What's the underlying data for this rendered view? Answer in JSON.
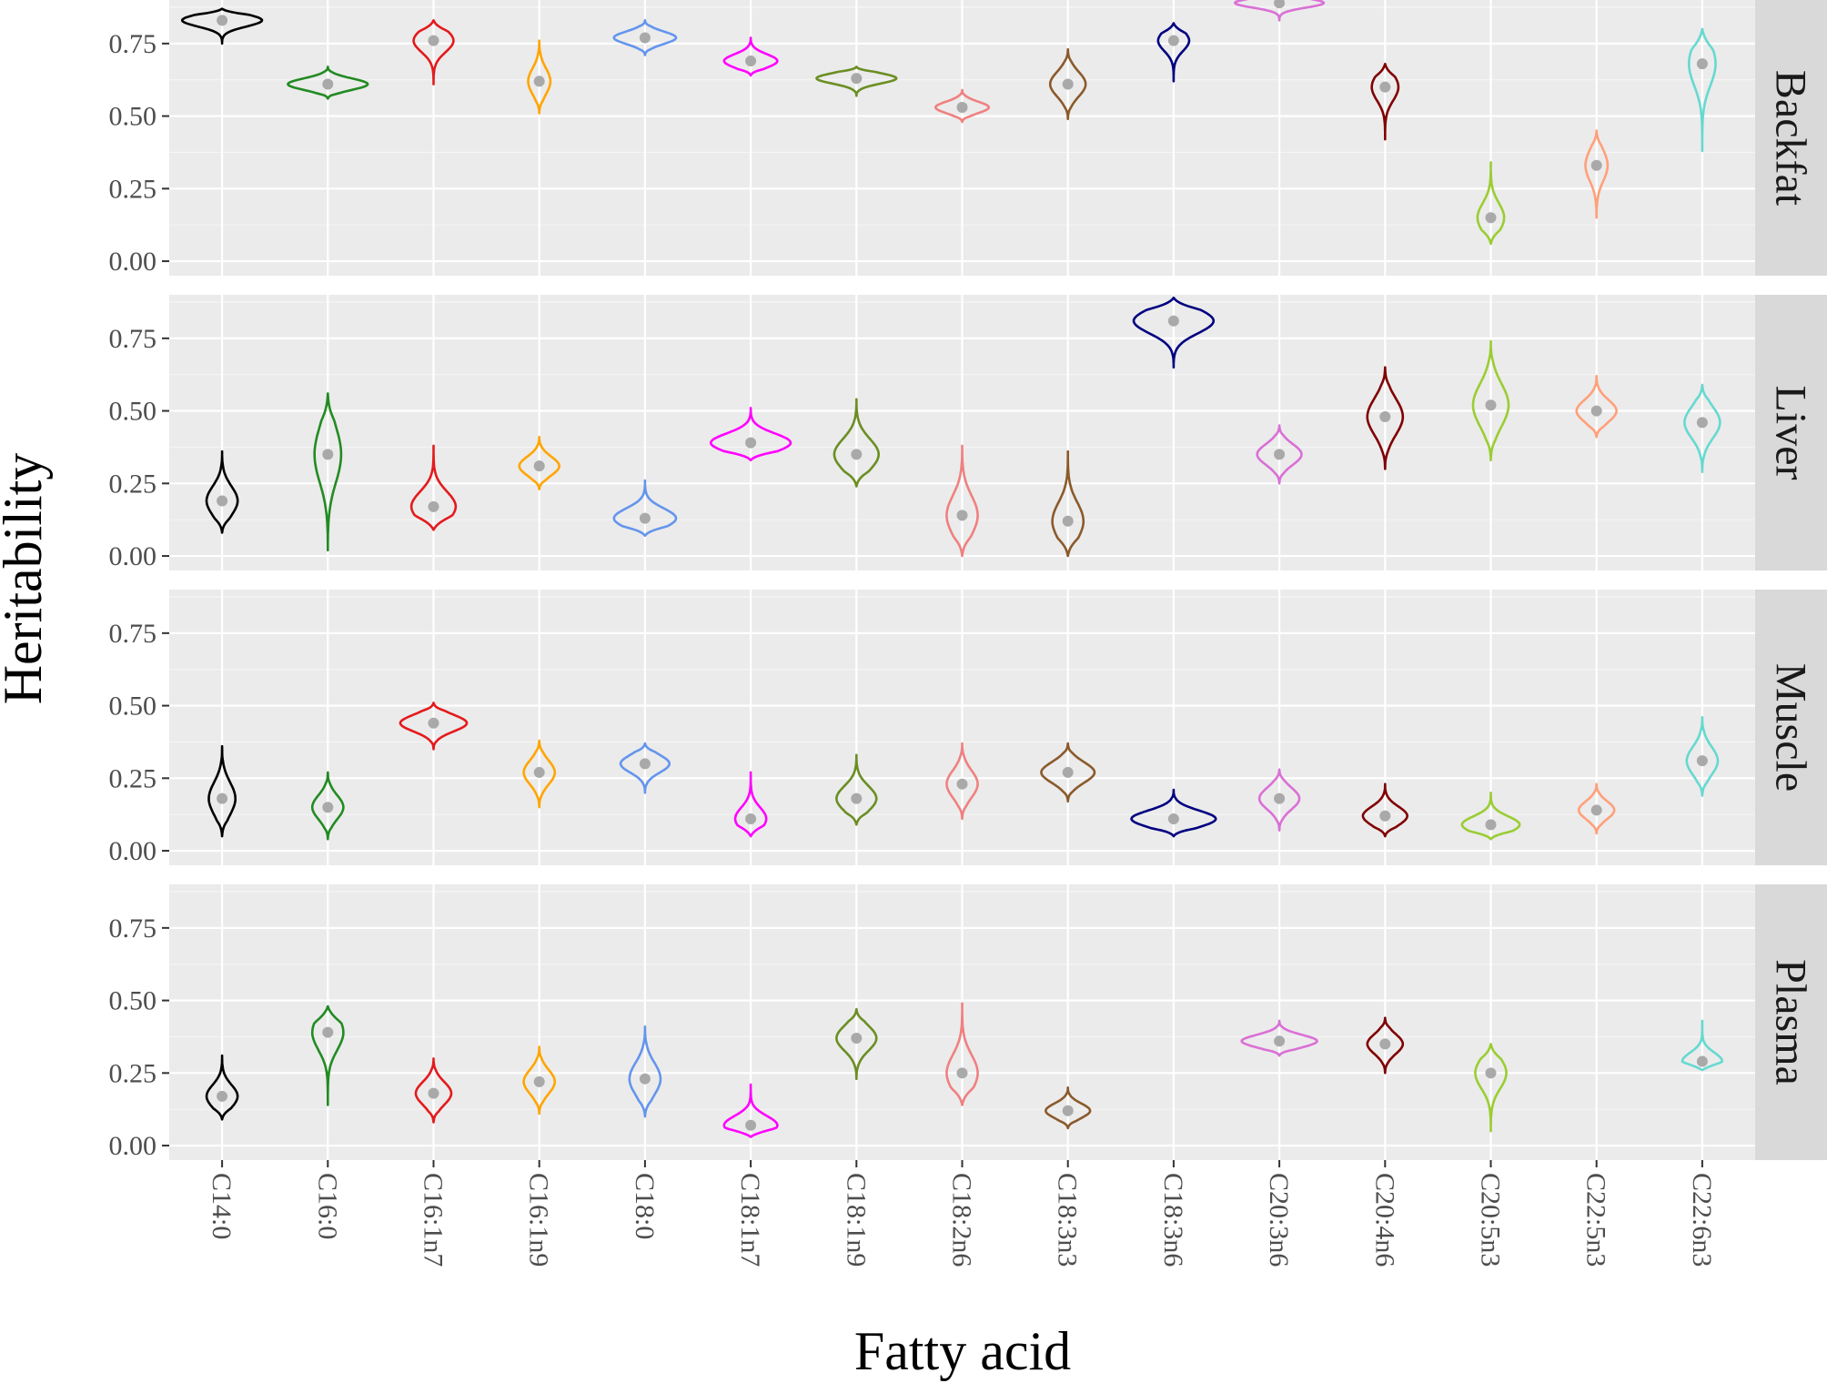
{
  "chart_data": {
    "type": "violin",
    "xlabel": "Fatty acid",
    "ylabel": "Heritability",
    "ylim": [
      -0.05,
      0.9
    ],
    "yticks": [
      0.0,
      0.25,
      0.5,
      0.75
    ],
    "ytick_labels": [
      "0.00",
      "0.25",
      "0.50",
      "0.75"
    ],
    "grid": true,
    "categories": [
      "C14:0",
      "C16:0",
      "C16:1n7",
      "C16:1n9",
      "C18:0",
      "C18:1n7",
      "C18:1n9",
      "C18:2n6",
      "C18:3n3",
      "C18:3n6",
      "C20:3n6",
      "C20:4n6",
      "C20:5n3",
      "C22:5n3",
      "C22:6n3"
    ],
    "colors": [
      "#000000",
      "#228B22",
      "#E41A1C",
      "#FFA500",
      "#6495ED",
      "#FF00FF",
      "#6B8E23",
      "#F08080",
      "#8B5A2B",
      "#000080",
      "#DA70D6",
      "#800000",
      "#9ACD32",
      "#FFA07A",
      "#66D9D0"
    ],
    "mean_marker_color": "#A9A9A9",
    "panels": [
      {
        "name": "Backfat",
        "means": [
          0.83,
          0.61,
          0.76,
          0.62,
          0.77,
          0.69,
          0.63,
          0.53,
          0.61,
          0.76,
          0.89,
          0.6,
          0.15,
          0.33,
          0.68
        ],
        "ranges": [
          [
            0.75,
            0.87
          ],
          [
            0.56,
            0.67
          ],
          [
            0.61,
            0.83
          ],
          [
            0.51,
            0.76
          ],
          [
            0.71,
            0.83
          ],
          [
            0.64,
            0.77
          ],
          [
            0.57,
            0.67
          ],
          [
            0.48,
            0.59
          ],
          [
            0.49,
            0.73
          ],
          [
            0.62,
            0.82
          ],
          [
            0.83,
            0.92
          ],
          [
            0.42,
            0.68
          ],
          [
            0.06,
            0.34
          ],
          [
            0.15,
            0.45
          ],
          [
            0.38,
            0.8
          ]
        ],
        "widths": [
          0.9,
          0.9,
          0.45,
          0.25,
          0.7,
          0.6,
          0.9,
          0.6,
          0.4,
          0.35,
          1.0,
          0.3,
          0.3,
          0.25,
          0.3
        ]
      },
      {
        "name": "Liver",
        "means": [
          0.19,
          0.35,
          0.17,
          0.31,
          0.13,
          0.39,
          0.35,
          0.14,
          0.12,
          0.81,
          0.35,
          0.48,
          0.52,
          0.5,
          0.46
        ],
        "ranges": [
          [
            0.08,
            0.36
          ],
          [
            0.02,
            0.56
          ],
          [
            0.09,
            0.38
          ],
          [
            0.23,
            0.41
          ],
          [
            0.07,
            0.26
          ],
          [
            0.33,
            0.51
          ],
          [
            0.24,
            0.54
          ],
          [
            0.0,
            0.38
          ],
          [
            0.0,
            0.36
          ],
          [
            0.65,
            0.89
          ],
          [
            0.25,
            0.45
          ],
          [
            0.3,
            0.65
          ],
          [
            0.33,
            0.74
          ],
          [
            0.41,
            0.62
          ],
          [
            0.29,
            0.59
          ]
        ],
        "widths": [
          0.35,
          0.3,
          0.5,
          0.45,
          0.7,
          0.9,
          0.5,
          0.35,
          0.35,
          0.9,
          0.5,
          0.4,
          0.4,
          0.45,
          0.4
        ]
      },
      {
        "name": "Muscle",
        "means": [
          0.18,
          0.15,
          0.44,
          0.27,
          0.3,
          0.11,
          0.18,
          0.23,
          0.27,
          0.11,
          0.18,
          0.12,
          0.09,
          0.14,
          0.31
        ],
        "ranges": [
          [
            0.05,
            0.36
          ],
          [
            0.04,
            0.27
          ],
          [
            0.35,
            0.51
          ],
          [
            0.15,
            0.38
          ],
          [
            0.2,
            0.37
          ],
          [
            0.05,
            0.27
          ],
          [
            0.09,
            0.33
          ],
          [
            0.11,
            0.37
          ],
          [
            0.17,
            0.37
          ],
          [
            0.05,
            0.21
          ],
          [
            0.07,
            0.28
          ],
          [
            0.05,
            0.23
          ],
          [
            0.04,
            0.2
          ],
          [
            0.06,
            0.23
          ],
          [
            0.19,
            0.46
          ]
        ],
        "widths": [
          0.3,
          0.35,
          0.75,
          0.35,
          0.55,
          0.35,
          0.45,
          0.35,
          0.6,
          0.95,
          0.45,
          0.5,
          0.65,
          0.4,
          0.35
        ]
      },
      {
        "name": "Plasma",
        "means": [
          0.17,
          0.39,
          0.18,
          0.22,
          0.23,
          0.07,
          0.37,
          0.25,
          0.12,
          null,
          0.36,
          0.35,
          0.25,
          null,
          0.29
        ],
        "ranges": [
          [
            0.09,
            0.31
          ],
          [
            0.14,
            0.48
          ],
          [
            0.08,
            0.3
          ],
          [
            0.11,
            0.34
          ],
          [
            0.1,
            0.41
          ],
          [
            0.03,
            0.21
          ],
          [
            0.23,
            0.47
          ],
          [
            0.14,
            0.49
          ],
          [
            0.06,
            0.2
          ],
          null,
          [
            0.31,
            0.43
          ],
          [
            0.25,
            0.44
          ],
          [
            0.05,
            0.35
          ],
          null,
          [
            0.26,
            0.43
          ]
        ],
        "widths": [
          0.35,
          0.35,
          0.4,
          0.35,
          0.35,
          0.6,
          0.45,
          0.35,
          0.5,
          0,
          0.85,
          0.4,
          0.35,
          0,
          0.45
        ]
      }
    ]
  }
}
